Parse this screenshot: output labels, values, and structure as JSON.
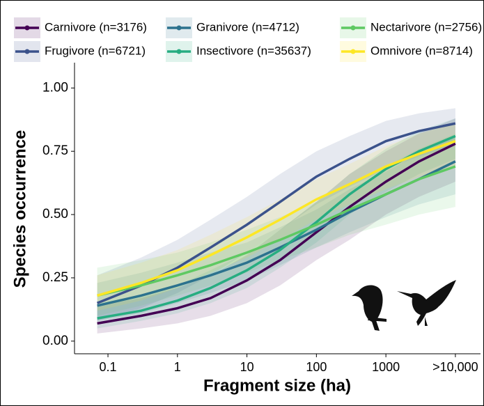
{
  "chart_data": {
    "type": "line",
    "x_label": "Fragment size (ha)",
    "y_label": "Species occurrence",
    "log_x": true,
    "x": [
      0.07,
      0.3,
      1,
      3,
      10,
      30,
      100,
      300,
      1000,
      3000,
      10000
    ],
    "xlim": [
      0.033,
      23000
    ],
    "xticks": [
      0.1,
      1,
      10,
      100,
      1000,
      {
        "value": 10000,
        "label": ">10,000"
      }
    ],
    "ylim": [
      -0.05,
      1.1
    ],
    "yticks": [
      {
        "value": 0,
        "label": "0.00"
      },
      {
        "value": 0.25,
        "label": "0.25"
      },
      {
        "value": 0.5,
        "label": "0.50"
      },
      {
        "value": 0.75,
        "label": "0.75"
      },
      {
        "value": 1,
        "label": "1.00"
      }
    ],
    "series": [
      {
        "name": "Carnivore (n=3176)",
        "color": "#440154",
        "values": [
          0.07,
          0.1,
          0.13,
          0.17,
          0.24,
          0.32,
          0.43,
          0.53,
          0.63,
          0.71,
          0.78
        ],
        "lower": [
          0.03,
          0.05,
          0.07,
          0.1,
          0.15,
          0.22,
          0.32,
          0.4,
          0.5,
          0.57,
          0.63
        ],
        "upper": [
          0.14,
          0.17,
          0.21,
          0.26,
          0.34,
          0.44,
          0.55,
          0.66,
          0.75,
          0.82,
          0.88
        ]
      },
      {
        "name": "Frugivore (n=6721)",
        "color": "#3b528b",
        "values": [
          0.15,
          0.22,
          0.29,
          0.37,
          0.46,
          0.55,
          0.65,
          0.72,
          0.79,
          0.83,
          0.86
        ],
        "lower": [
          0.08,
          0.13,
          0.19,
          0.26,
          0.35,
          0.44,
          0.54,
          0.61,
          0.68,
          0.73,
          0.77
        ],
        "upper": [
          0.26,
          0.33,
          0.4,
          0.48,
          0.57,
          0.66,
          0.75,
          0.81,
          0.87,
          0.9,
          0.92
        ]
      },
      {
        "name": "Granivore (n=4712)",
        "color": "#2c728e",
        "values": [
          0.14,
          0.18,
          0.22,
          0.26,
          0.31,
          0.37,
          0.44,
          0.51,
          0.58,
          0.64,
          0.71
        ],
        "lower": [
          0.08,
          0.11,
          0.15,
          0.19,
          0.24,
          0.3,
          0.37,
          0.43,
          0.49,
          0.54,
          0.58
        ],
        "upper": [
          0.23,
          0.27,
          0.31,
          0.35,
          0.39,
          0.45,
          0.52,
          0.6,
          0.67,
          0.74,
          0.81
        ]
      },
      {
        "name": "Insectivore (n=35637)",
        "color": "#27ad81",
        "values": [
          0.09,
          0.12,
          0.16,
          0.21,
          0.28,
          0.36,
          0.47,
          0.58,
          0.68,
          0.75,
          0.81
        ],
        "lower": [
          0.05,
          0.08,
          0.11,
          0.15,
          0.21,
          0.29,
          0.39,
          0.5,
          0.59,
          0.66,
          0.72
        ],
        "upper": [
          0.15,
          0.18,
          0.22,
          0.28,
          0.35,
          0.44,
          0.55,
          0.66,
          0.76,
          0.83,
          0.88
        ]
      },
      {
        "name": "Nectarivore (n=2756)",
        "color": "#5ec962",
        "values": [
          0.18,
          0.22,
          0.26,
          0.3,
          0.35,
          0.4,
          0.46,
          0.52,
          0.58,
          0.64,
          0.69
        ],
        "lower": [
          0.1,
          0.14,
          0.18,
          0.22,
          0.27,
          0.32,
          0.37,
          0.42,
          0.46,
          0.5,
          0.53
        ],
        "upper": [
          0.29,
          0.32,
          0.35,
          0.39,
          0.44,
          0.49,
          0.55,
          0.62,
          0.69,
          0.76,
          0.82
        ]
      },
      {
        "name": "Omnivore (n=8714)",
        "color": "#fde725",
        "values": [
          0.18,
          0.23,
          0.28,
          0.34,
          0.41,
          0.48,
          0.56,
          0.62,
          0.69,
          0.74,
          0.79
        ],
        "lower": [
          0.12,
          0.16,
          0.21,
          0.27,
          0.33,
          0.4,
          0.48,
          0.54,
          0.6,
          0.65,
          0.69
        ],
        "upper": [
          0.26,
          0.31,
          0.36,
          0.42,
          0.49,
          0.56,
          0.64,
          0.7,
          0.77,
          0.82,
          0.86
        ]
      }
    ]
  }
}
